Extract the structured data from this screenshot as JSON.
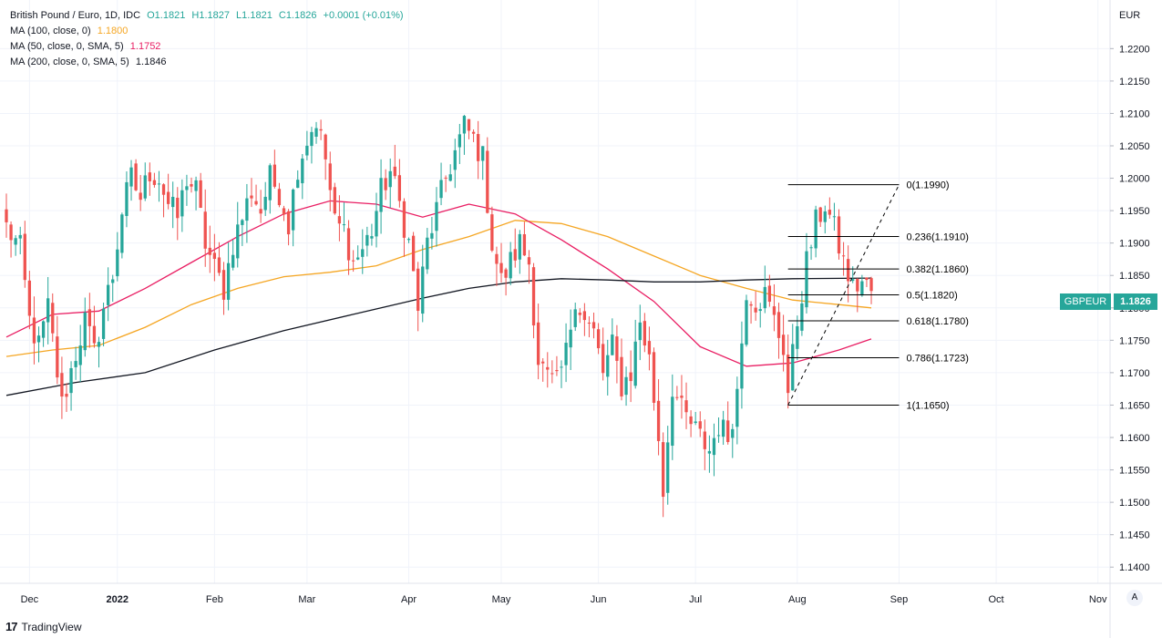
{
  "legend": {
    "instrument": "British Pound / Euro, 1D, IDC",
    "open": "O1.1821",
    "high": "H1.1827",
    "low": "L1.1821",
    "close": "C1.1826",
    "change": "+0.0001 (+0.01%)",
    "ma100_label": "MA (100, close, 0)",
    "ma100_value": "1.1800",
    "ma50_label": "MA (50, close, 0, SMA, 5)",
    "ma50_value": "1.1752",
    "ma200_label": "MA (200, close, 0, SMA, 5)",
    "ma200_value": "1.1846"
  },
  "axis": {
    "currency": "EUR",
    "auto_label": "A"
  },
  "price_tag": {
    "symbol": "GBPEUR",
    "value": "1.1826"
  },
  "branding": {
    "name": "TradingView"
  },
  "colors": {
    "up": "#26a69a",
    "down": "#ef5350",
    "ma100": "#f5a623",
    "ma50": "#e91e63",
    "ma200": "#131722",
    "grid": "#f0f3fa",
    "axis_text": "#131722",
    "fib": "#000000"
  },
  "chart_data": {
    "type": "candlestick",
    "title": "British Pound / Euro, 1D, IDC",
    "ylabel": "EUR",
    "ylim": [
      1.1375,
      1.2275
    ],
    "y_ticks": [
      "1.2200",
      "1.2150",
      "1.2100",
      "1.2050",
      "1.2000",
      "1.1950",
      "1.1900",
      "1.1850",
      "1.1800",
      "1.1750",
      "1.1700",
      "1.1650",
      "1.1600",
      "1.1550",
      "1.1500",
      "1.1450",
      "1.1400"
    ],
    "x_labels": [
      {
        "label": "Dec",
        "index": 5
      },
      {
        "label": "2022",
        "index": 24
      },
      {
        "label": "Feb",
        "index": 45
      },
      {
        "label": "Mar",
        "index": 65
      },
      {
        "label": "Apr",
        "index": 87
      },
      {
        "label": "May",
        "index": 107
      },
      {
        "label": "Jun",
        "index": 128
      },
      {
        "label": "Jul",
        "index": 149
      },
      {
        "label": "Aug",
        "index": 171
      },
      {
        "label": "Sep",
        "index": 193
      },
      {
        "label": "Oct",
        "index": 214
      },
      {
        "label": "Nov",
        "index": 236
      }
    ],
    "x_bold": [
      "2022"
    ],
    "total_slots": 240,
    "waypoints": [
      [
        0,
        1.1925
      ],
      [
        3,
        1.189
      ],
      [
        5,
        1.178
      ],
      [
        7,
        1.174
      ],
      [
        9,
        1.18
      ],
      [
        11,
        1.17
      ],
      [
        12,
        1.165
      ],
      [
        15,
        1.173
      ],
      [
        17,
        1.178
      ],
      [
        19,
        1.173
      ],
      [
        21,
        1.18
      ],
      [
        23,
        1.185
      ],
      [
        25,
        1.195
      ],
      [
        27,
        1.2
      ],
      [
        29,
        1.197
      ],
      [
        31,
        1.201
      ],
      [
        33,
        1.2
      ],
      [
        35,
        1.196
      ],
      [
        37,
        1.194
      ],
      [
        39,
        1.2
      ],
      [
        41,
        1.198
      ],
      [
        43,
        1.19
      ],
      [
        45,
        1.186
      ],
      [
        47,
        1.183
      ],
      [
        49,
        1.19
      ],
      [
        51,
        1.194
      ],
      [
        53,
        1.198
      ],
      [
        55,
        1.195
      ],
      [
        57,
        1.2
      ],
      [
        59,
        1.198
      ],
      [
        61,
        1.193
      ],
      [
        63,
        1.202
      ],
      [
        65,
        1.206
      ],
      [
        67,
        1.209
      ],
      [
        69,
        1.203
      ],
      [
        71,
        1.193
      ],
      [
        73,
        1.192
      ],
      [
        75,
        1.187
      ],
      [
        77,
        1.189
      ],
      [
        79,
        1.192
      ],
      [
        81,
        1.198
      ],
      [
        83,
        1.201
      ],
      [
        85,
        1.196
      ],
      [
        87,
        1.19
      ],
      [
        89,
        1.18
      ],
      [
        91,
        1.19
      ],
      [
        93,
        1.195
      ],
      [
        95,
        1.2
      ],
      [
        97,
        1.204
      ],
      [
        99,
        1.208
      ],
      [
        101,
        1.206
      ],
      [
        103,
        1.203
      ],
      [
        105,
        1.19
      ],
      [
        107,
        1.184
      ],
      [
        109,
        1.187
      ],
      [
        111,
        1.19
      ],
      [
        113,
        1.187
      ],
      [
        115,
        1.172
      ],
      [
        117,
        1.169
      ],
      [
        119,
        1.168
      ],
      [
        121,
        1.173
      ],
      [
        123,
        1.182
      ],
      [
        125,
        1.178
      ],
      [
        127,
        1.176
      ],
      [
        129,
        1.17
      ],
      [
        131,
        1.174
      ],
      [
        133,
        1.168
      ],
      [
        135,
        1.17
      ],
      [
        137,
        1.178
      ],
      [
        139,
        1.172
      ],
      [
        141,
        1.16
      ],
      [
        142,
        1.152
      ],
      [
        144,
        1.168
      ],
      [
        146,
        1.164
      ],
      [
        148,
        1.162
      ],
      [
        150,
        1.16
      ],
      [
        152,
        1.158
      ],
      [
        154,
        1.162
      ],
      [
        156,
        1.16
      ],
      [
        158,
        1.167
      ],
      [
        160,
        1.183
      ],
      [
        162,
        1.181
      ],
      [
        164,
        1.182
      ],
      [
        166,
        1.178
      ],
      [
        168,
        1.174
      ],
      [
        169,
        1.167
      ],
      [
        171,
        1.178
      ],
      [
        173,
        1.187
      ],
      [
        175,
        1.193
      ],
      [
        177,
        1.196
      ],
      [
        179,
        1.192
      ],
      [
        181,
        1.187
      ],
      [
        183,
        1.183
      ],
      [
        185,
        1.184
      ],
      [
        187,
        1.1826
      ]
    ],
    "candles_end_index": 187,
    "last_close": 1.1826,
    "series": [
      {
        "name": "MA (100, close, 0)",
        "color": "#f5a623",
        "points": [
          [
            0,
            1.1725
          ],
          [
            10,
            1.1735
          ],
          [
            20,
            1.1742
          ],
          [
            30,
            1.177
          ],
          [
            40,
            1.1805
          ],
          [
            50,
            1.183
          ],
          [
            60,
            1.1848
          ],
          [
            70,
            1.1855
          ],
          [
            80,
            1.1865
          ],
          [
            90,
            1.189
          ],
          [
            100,
            1.191
          ],
          [
            110,
            1.1935
          ],
          [
            120,
            1.193
          ],
          [
            130,
            1.191
          ],
          [
            140,
            1.188
          ],
          [
            150,
            1.185
          ],
          [
            160,
            1.183
          ],
          [
            170,
            1.1812
          ],
          [
            180,
            1.1805
          ],
          [
            187,
            1.18
          ]
        ]
      },
      {
        "name": "MA (50, close, 0, SMA, 5)",
        "color": "#e91e63",
        "points": [
          [
            0,
            1.1755
          ],
          [
            10,
            1.179
          ],
          [
            20,
            1.1795
          ],
          [
            30,
            1.183
          ],
          [
            40,
            1.187
          ],
          [
            50,
            1.191
          ],
          [
            60,
            1.1945
          ],
          [
            70,
            1.1965
          ],
          [
            80,
            1.196
          ],
          [
            90,
            1.194
          ],
          [
            100,
            1.196
          ],
          [
            110,
            1.1945
          ],
          [
            120,
            1.1905
          ],
          [
            130,
            1.186
          ],
          [
            140,
            1.181
          ],
          [
            150,
            1.174
          ],
          [
            160,
            1.171
          ],
          [
            170,
            1.1715
          ],
          [
            180,
            1.1735
          ],
          [
            187,
            1.1752
          ]
        ]
      },
      {
        "name": "MA (200, close, 0, SMA, 5)",
        "color": "#131722",
        "points": [
          [
            0,
            1.1665
          ],
          [
            15,
            1.1685
          ],
          [
            30,
            1.17
          ],
          [
            45,
            1.1735
          ],
          [
            60,
            1.1765
          ],
          [
            75,
            1.179
          ],
          [
            90,
            1.1815
          ],
          [
            100,
            1.183
          ],
          [
            110,
            1.184
          ],
          [
            120,
            1.1845
          ],
          [
            130,
            1.1843
          ],
          [
            140,
            1.184
          ],
          [
            150,
            1.184
          ],
          [
            160,
            1.1843
          ],
          [
            170,
            1.1845
          ],
          [
            187,
            1.1846
          ]
        ]
      }
    ],
    "fibonacci": {
      "start_index": 169,
      "end_index": 193,
      "levels": [
        {
          "label": "0(1.1990)",
          "value": 1.199
        },
        {
          "label": "0.236(1.1910)",
          "value": 1.191
        },
        {
          "label": "0.382(1.1860)",
          "value": 1.186
        },
        {
          "label": "0.5(1.1820)",
          "value": 1.182
        },
        {
          "label": "0.618(1.1780)",
          "value": 1.178
        },
        {
          "label": "0.786(1.1723)",
          "value": 1.1723
        },
        {
          "label": "1(1.1650)",
          "value": 1.165
        }
      ],
      "trend_from": [
        169,
        1.165
      ],
      "trend_to": [
        193,
        1.199
      ]
    }
  }
}
